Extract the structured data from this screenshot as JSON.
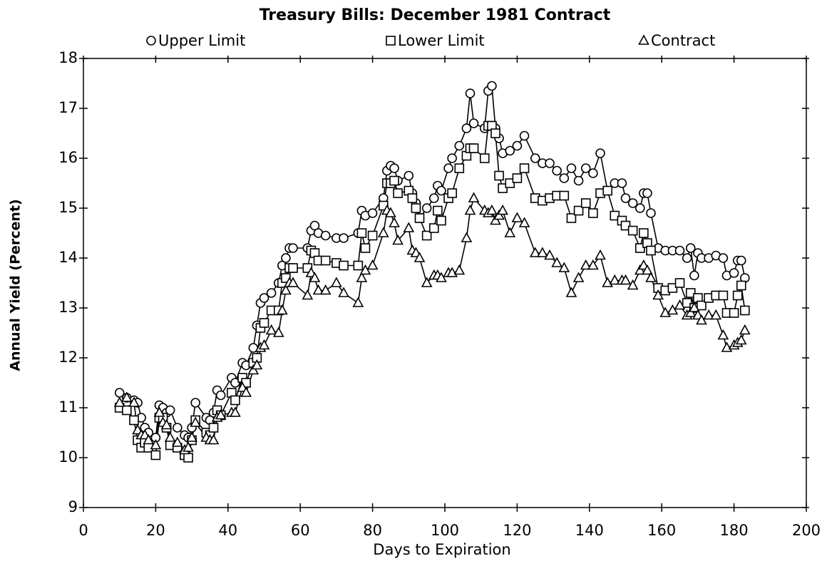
{
  "chart_data": {
    "type": "line",
    "title": "Treasury Bills: December 1981 Contract",
    "x_label": "Days to Expiration",
    "y_label": "Annual Yield (Percent)",
    "legend": "top",
    "x": [
      10,
      12,
      14,
      15,
      16,
      17,
      18,
      20,
      21,
      22,
      23,
      24,
      26,
      28,
      29,
      30,
      31,
      34,
      35,
      36,
      37,
      38,
      41,
      42,
      44,
      45,
      47,
      48,
      49,
      50,
      52,
      54,
      55,
      56,
      57,
      58,
      62,
      63,
      64,
      65,
      67,
      70,
      72,
      76,
      77,
      78,
      80,
      83,
      84,
      85,
      86,
      87,
      90,
      91,
      92,
      93,
      95,
      97,
      98,
      99,
      101,
      102,
      104,
      106,
      107,
      108,
      111,
      112,
      113,
      114,
      115,
      116,
      118,
      120,
      122,
      125,
      127,
      129,
      131,
      133,
      135,
      137,
      139,
      141,
      143,
      145,
      147,
      149,
      150,
      152,
      154,
      155,
      156,
      157,
      159,
      161,
      163,
      165,
      167,
      168,
      169,
      170,
      171,
      173,
      175,
      177,
      178,
      180,
      181,
      182,
      183
    ],
    "series": [
      {
        "name": "Upper Limit",
        "marker": "circle",
        "color": "#000000",
        "values": [
          11.3,
          11.2,
          11.15,
          11.1,
          10.8,
          10.6,
          10.5,
          10.4,
          11.05,
          11.0,
          10.9,
          10.95,
          10.6,
          10.45,
          10.4,
          10.6,
          11.1,
          10.8,
          10.75,
          10.9,
          11.35,
          11.25,
          11.6,
          11.5,
          11.9,
          11.85,
          12.2,
          12.65,
          13.1,
          13.2,
          13.3,
          13.5,
          13.85,
          14.0,
          14.2,
          14.2,
          14.2,
          14.55,
          14.65,
          14.5,
          14.45,
          14.4,
          14.4,
          14.5,
          14.95,
          14.85,
          14.9,
          15.2,
          15.75,
          15.85,
          15.8,
          15.55,
          15.65,
          15.3,
          15.1,
          14.8,
          15.0,
          15.2,
          15.45,
          15.35,
          15.8,
          16.0,
          16.25,
          16.6,
          17.3,
          16.7,
          16.6,
          17.35,
          17.45,
          16.6,
          16.4,
          16.1,
          16.15,
          16.25,
          16.45,
          16.0,
          15.9,
          15.9,
          15.75,
          15.6,
          15.8,
          15.55,
          15.8,
          15.7,
          16.1,
          15.35,
          15.5,
          15.5,
          15.2,
          15.1,
          15.0,
          15.3,
          15.3,
          14.9,
          14.2,
          14.15,
          14.15,
          14.15,
          14.0,
          14.2,
          13.65,
          14.1,
          14.0,
          14.0,
          14.05,
          14.0,
          13.65,
          13.7,
          13.95,
          13.95,
          13.6
        ]
      },
      {
        "name": "Lower Limit",
        "marker": "square",
        "color": "#000000",
        "values": [
          11.0,
          10.95,
          10.75,
          10.35,
          10.2,
          10.3,
          10.2,
          10.05,
          10.8,
          10.8,
          10.6,
          10.25,
          10.2,
          10.05,
          10.0,
          10.35,
          10.75,
          10.5,
          10.45,
          10.6,
          10.95,
          10.85,
          11.3,
          11.15,
          11.6,
          11.5,
          11.9,
          12.0,
          12.6,
          12.7,
          12.95,
          12.95,
          13.5,
          13.6,
          13.8,
          13.8,
          13.8,
          14.15,
          14.1,
          13.95,
          13.95,
          13.9,
          13.85,
          13.85,
          14.5,
          14.2,
          14.45,
          15.05,
          15.5,
          15.5,
          15.55,
          15.3,
          15.35,
          15.2,
          15.0,
          14.8,
          14.45,
          14.6,
          14.95,
          14.75,
          15.2,
          15.3,
          15.8,
          16.05,
          16.2,
          16.2,
          16.0,
          16.65,
          16.65,
          16.5,
          15.65,
          15.4,
          15.5,
          15.6,
          15.8,
          15.2,
          15.15,
          15.2,
          15.25,
          15.25,
          14.8,
          14.95,
          15.1,
          14.9,
          15.3,
          15.35,
          14.85,
          14.75,
          14.65,
          14.55,
          14.2,
          14.5,
          14.3,
          14.15,
          13.4,
          13.35,
          13.4,
          13.5,
          13.1,
          13.3,
          13.0,
          13.2,
          13.05,
          13.2,
          13.25,
          13.25,
          12.9,
          12.9,
          13.25,
          13.45,
          12.95
        ]
      },
      {
        "name": "Contract",
        "marker": "triangle",
        "color": "#000000",
        "values": [
          11.1,
          11.2,
          11.1,
          10.55,
          10.45,
          10.45,
          10.35,
          10.25,
          10.9,
          10.7,
          10.65,
          10.4,
          10.3,
          10.15,
          10.2,
          10.4,
          10.7,
          10.4,
          10.35,
          10.35,
          10.8,
          10.85,
          10.9,
          10.9,
          11.4,
          11.3,
          11.75,
          11.85,
          12.2,
          12.25,
          12.55,
          12.5,
          12.95,
          13.35,
          13.5,
          13.5,
          13.25,
          13.7,
          13.6,
          13.35,
          13.35,
          13.5,
          13.3,
          13.1,
          13.6,
          13.75,
          13.85,
          14.5,
          14.95,
          14.9,
          14.7,
          14.35,
          14.6,
          14.15,
          14.1,
          14.0,
          13.5,
          13.65,
          13.65,
          13.6,
          13.7,
          13.7,
          13.75,
          14.4,
          14.95,
          15.2,
          14.95,
          14.9,
          14.95,
          14.75,
          14.85,
          14.95,
          14.5,
          14.8,
          14.7,
          14.1,
          14.1,
          14.05,
          13.9,
          13.8,
          13.3,
          13.6,
          13.85,
          13.85,
          14.05,
          13.5,
          13.55,
          13.55,
          13.55,
          13.45,
          13.75,
          13.85,
          13.75,
          13.6,
          13.25,
          12.9,
          12.95,
          13.05,
          12.85,
          12.9,
          13.0,
          12.85,
          12.75,
          12.85,
          12.85,
          12.45,
          12.2,
          12.25,
          12.3,
          12.35,
          12.55
        ]
      }
    ],
    "xlim": [
      0,
      200
    ],
    "xticks": [
      0,
      20,
      40,
      60,
      80,
      100,
      120,
      140,
      160,
      180,
      200
    ],
    "ylim": [
      9,
      18
    ],
    "yticks": [
      9,
      10,
      11,
      12,
      13,
      14,
      15,
      16,
      17,
      18
    ],
    "grid": false
  }
}
